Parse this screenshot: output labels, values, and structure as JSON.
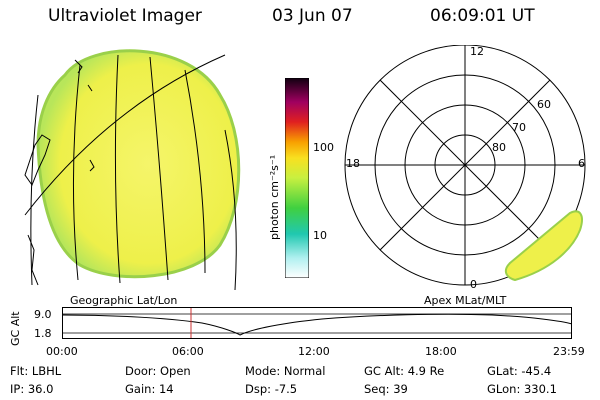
{
  "header": {
    "instrument": "Ultraviolet Imager",
    "date": "03 Jun 07",
    "time": "06:09:01 UT"
  },
  "colorbar": {
    "label": "photon cm⁻²s⁻¹",
    "ticks": [
      "100",
      "10"
    ]
  },
  "left_panel": {
    "caption": "Geographic Lat/Lon"
  },
  "right_panel": {
    "caption": "Apex MLat/MLT",
    "mlt_labels": {
      "top": "12",
      "left": "18",
      "right": "6",
      "bottom": "0"
    },
    "lat_labels": [
      "60",
      "70",
      "80"
    ]
  },
  "timeline": {
    "ylabel": "GC Alt",
    "yticks": [
      "9.0",
      "1.8"
    ],
    "xticks": [
      "00:00",
      "06:00",
      "12:00",
      "18:00",
      "23:59"
    ],
    "current_time": "06:09"
  },
  "status": {
    "row1": [
      {
        "key": "Flt:",
        "value": "LBHL"
      },
      {
        "key": "Door:",
        "value": "Open"
      },
      {
        "key": "Mode:",
        "value": "Normal"
      },
      {
        "key": "GC Alt:",
        "value": "4.9 Re"
      },
      {
        "key": "GLat:",
        "value": "-45.4"
      }
    ],
    "row2": [
      {
        "key": "IP:",
        "value": "36.0"
      },
      {
        "key": "Gain:",
        "value": "14"
      },
      {
        "key": "Dsp:",
        "value": "-7.5"
      },
      {
        "key": "Seq:",
        "value": "39"
      },
      {
        "key": "GLon:",
        "value": "330.1"
      }
    ]
  },
  "colors": {
    "glow_yellow": "#f2f24a",
    "glow_green": "#b8e65a",
    "marker": "#cc3333"
  }
}
